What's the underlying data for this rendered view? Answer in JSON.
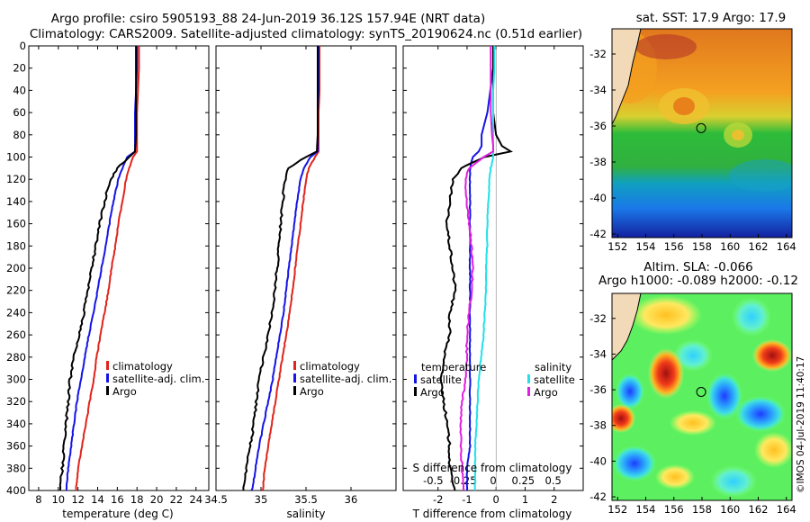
{
  "header": {
    "line1": "Argo profile: csiro 5905193_88 24-Jun-2019 36.12S 157.94E (NRT data)",
    "line2": "Climatology: CARS2009. Satellite-adjusted climatology: synTS_20190624.nc (0.51d earlier)"
  },
  "stamp": "©IMOS 04-Jul-2019 11:40:17",
  "colors": {
    "climatology": "#e0241b",
    "satellite": "#1414e6",
    "argo": "#000000",
    "sat_salinity": "#22e0e8",
    "salinity_argo": "#e020e0"
  },
  "chart_data": [
    {
      "type": "line",
      "title": "",
      "xlabel": "temperature (deg C)",
      "ylabel": "",
      "xlim": [
        7,
        25.3
      ],
      "ylim": [
        400,
        0
      ],
      "xticks": [
        "8",
        "10",
        "12",
        "14",
        "16",
        "18",
        "20",
        "22",
        "24"
      ],
      "xtick_values": [
        8,
        10,
        12,
        14,
        16,
        18,
        20,
        22,
        24
      ],
      "yticks": [
        "0",
        "20",
        "40",
        "60",
        "80",
        "100",
        "120",
        "140",
        "160",
        "180",
        "200",
        "220",
        "240",
        "260",
        "280",
        "300",
        "320",
        "340",
        "360",
        "380",
        "400"
      ],
      "depths": [
        0,
        20,
        40,
        60,
        80,
        95,
        100,
        110,
        120,
        140,
        160,
        180,
        200,
        220,
        240,
        260,
        280,
        300,
        320,
        340,
        360,
        380,
        400
      ],
      "series": [
        {
          "name": "climatology",
          "color": "#e0241b",
          "values": [
            18.2,
            18.2,
            18.1,
            18.0,
            18.0,
            18.0,
            17.6,
            17.2,
            16.9,
            16.5,
            16.1,
            15.8,
            15.4,
            15.1,
            14.7,
            14.3,
            13.9,
            13.6,
            13.2,
            12.8,
            12.4,
            12.0,
            11.8
          ]
        },
        {
          "name": "satellite-adj. clim.",
          "color": "#1414e6",
          "values": [
            18.0,
            18.0,
            17.9,
            17.8,
            17.8,
            17.8,
            17.0,
            16.5,
            16.1,
            15.6,
            15.2,
            14.8,
            14.4,
            14.0,
            13.6,
            13.1,
            12.7,
            12.3,
            11.9,
            11.6,
            11.3,
            11.0,
            10.8
          ]
        },
        {
          "name": "Argo",
          "color": "#000000",
          "values": [
            17.9,
            17.9,
            17.9,
            17.9,
            17.9,
            17.8,
            17.2,
            16.0,
            15.3,
            14.7,
            14.2,
            13.8,
            13.4,
            13.0,
            12.6,
            12.1,
            11.6,
            11.2,
            11.0,
            10.8,
            10.6,
            10.4,
            10.2
          ]
        }
      ],
      "legend": [
        "climatology",
        "satellite-adj. clim.",
        "Argo"
      ],
      "legend_position": "lower-right"
    },
    {
      "type": "line",
      "title": "",
      "xlabel": "salinity",
      "ylabel": "",
      "xlim": [
        34.5,
        36.5
      ],
      "ylim": [
        400,
        0
      ],
      "xticks": [
        "34.5",
        "35",
        "35.5",
        "36"
      ],
      "xtick_values": [
        34.5,
        35,
        35.5,
        36
      ],
      "depths": [
        0,
        20,
        40,
        60,
        80,
        95,
        100,
        110,
        120,
        140,
        160,
        180,
        200,
        220,
        240,
        260,
        280,
        300,
        320,
        340,
        360,
        380,
        400
      ],
      "series": [
        {
          "name": "climatology",
          "color": "#e0241b",
          "values": [
            35.65,
            35.65,
            35.65,
            35.64,
            35.64,
            35.64,
            35.6,
            35.53,
            35.5,
            35.47,
            35.44,
            35.41,
            35.38,
            35.35,
            35.32,
            35.28,
            35.24,
            35.2,
            35.16,
            35.12,
            35.08,
            35.04,
            35.02
          ]
        },
        {
          "name": "satellite-adj. clim.",
          "color": "#1414e6",
          "values": [
            35.64,
            35.64,
            35.64,
            35.63,
            35.63,
            35.63,
            35.55,
            35.48,
            35.44,
            35.4,
            35.37,
            35.34,
            35.31,
            35.28,
            35.25,
            35.21,
            35.17,
            35.13,
            35.08,
            35.03,
            34.98,
            34.94,
            34.9
          ]
        },
        {
          "name": "Argo",
          "color": "#000000",
          "values": [
            35.63,
            35.63,
            35.63,
            35.63,
            35.63,
            35.62,
            35.5,
            35.3,
            35.27,
            35.24,
            35.22,
            35.2,
            35.18,
            35.15,
            35.12,
            35.08,
            35.03,
            34.98,
            34.95,
            34.92,
            34.88,
            34.84,
            34.8
          ]
        }
      ],
      "legend": [
        "climatology",
        "satellite-adj. clim.",
        "Argo"
      ],
      "legend_position": "lower-right"
    },
    {
      "type": "line",
      "title": "",
      "xlabel": "T difference from climatology",
      "xlabel2": "S difference from climatology",
      "ylabel": "",
      "xlim": [
        -3.2,
        3.0
      ],
      "ylim": [
        400,
        0
      ],
      "xticks": [
        "-2",
        "-1",
        "0",
        "1",
        "2"
      ],
      "xtick_values": [
        -2,
        -1,
        0,
        1,
        2
      ],
      "xticks2": [
        "-0.5",
        "-0.25",
        "0",
        "0.25",
        "0.5"
      ],
      "xtick2_values": [
        -0.5,
        -0.25,
        0,
        0.25,
        0.5
      ],
      "depths": [
        0,
        20,
        40,
        60,
        80,
        90,
        95,
        100,
        110,
        120,
        140,
        160,
        180,
        200,
        220,
        240,
        260,
        280,
        300,
        320,
        340,
        360,
        380,
        400
      ],
      "series": [
        {
          "name": "temperature satellite",
          "color": "#1414e6",
          "values": [
            -0.1,
            -0.1,
            -0.2,
            -0.3,
            -0.5,
            -0.5,
            -0.6,
            -0.8,
            -0.9,
            -0.9,
            -0.9,
            -0.9,
            -0.9,
            -0.9,
            -0.9,
            -0.9,
            -0.9,
            -0.9,
            -0.9,
            -0.9,
            -0.9,
            -0.9,
            -1.0,
            -1.0
          ]
        },
        {
          "name": "temperature Argo",
          "color": "#000000",
          "values": [
            -0.1,
            -0.1,
            -0.1,
            -0.1,
            0.0,
            0.2,
            0.5,
            -0.4,
            -1.2,
            -1.5,
            -1.6,
            -1.7,
            -1.6,
            -1.5,
            -1.4,
            -1.6,
            -1.6,
            -1.8,
            -1.9,
            -1.8,
            -1.7,
            -1.6,
            -1.6,
            -1.4
          ]
        },
        {
          "name": "salinity satellite",
          "color": "#22e0e8",
          "values": [
            0.01,
            0.01,
            0.0,
            0.0,
            0.0,
            0.0,
            0.0,
            0.0,
            -0.02,
            -0.03,
            -0.04,
            -0.05,
            -0.05,
            -0.06,
            -0.06,
            -0.07,
            -0.08,
            -0.1,
            -0.12,
            -0.13,
            -0.14,
            -0.15,
            -0.15,
            -0.15
          ]
        },
        {
          "name": "salinity Argo",
          "color": "#e020e0",
          "values": [
            -0.02,
            -0.02,
            -0.02,
            -0.02,
            -0.01,
            0.0,
            0.0,
            -0.08,
            -0.2,
            -0.23,
            -0.22,
            -0.2,
            -0.18,
            -0.17,
            -0.18,
            -0.2,
            -0.22,
            -0.22,
            -0.23,
            -0.26,
            -0.27,
            -0.27,
            -0.26,
            -0.25
          ]
        }
      ],
      "legend_temperature": {
        "title": "temperature",
        "items": [
          "satellite",
          "Argo"
        ]
      },
      "legend_salinity": {
        "title": "salinity",
        "items": [
          "satellite",
          "Argo"
        ]
      },
      "legend_position": "lower-center"
    },
    {
      "type": "heatmap",
      "title": "sat. SST: 17.9 Argo: 17.9",
      "xticks": [
        "152",
        "154",
        "156",
        "158",
        "160",
        "162",
        "164"
      ],
      "xtick_values": [
        152,
        154,
        156,
        158,
        160,
        162,
        164
      ],
      "yticks": [
        "-32",
        "-34",
        "-36",
        "-38",
        "-40",
        "-42"
      ],
      "ytick_values": [
        -32,
        -34,
        -36,
        -38,
        -40,
        -42
      ],
      "xlim": [
        151.6,
        164.4
      ],
      "ylim": [
        -42.2,
        -30.6
      ],
      "marker": {
        "lon": 157.94,
        "lat": -36.12
      }
    },
    {
      "type": "heatmap",
      "title": "Altim. SLA: -0.066",
      "subtitle": "Argo h1000: -0.089 h2000: -0.12",
      "xticks": [
        "152",
        "154",
        "156",
        "158",
        "160",
        "162",
        "164"
      ],
      "xtick_values": [
        152,
        154,
        156,
        158,
        160,
        162,
        164
      ],
      "yticks": [
        "-32",
        "-34",
        "-36",
        "-38",
        "-40",
        "-42"
      ],
      "ytick_values": [
        -32,
        -34,
        -36,
        -38,
        -40,
        -42
      ],
      "xlim": [
        151.6,
        164.4
      ],
      "ylim": [
        -42.2,
        -30.6
      ],
      "marker": {
        "lon": 157.94,
        "lat": -36.12
      }
    }
  ]
}
